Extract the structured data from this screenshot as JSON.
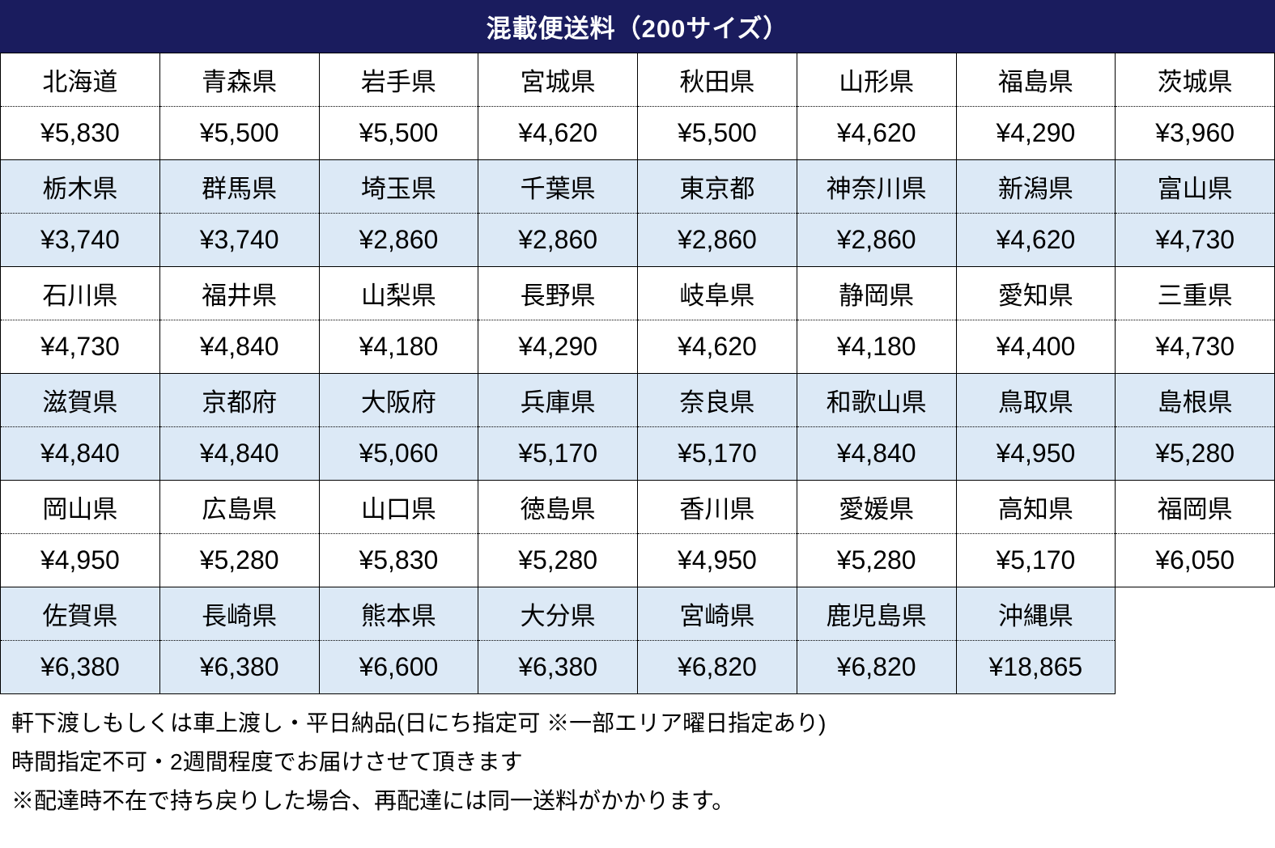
{
  "title": "混載便送料（200サイズ）",
  "colors": {
    "header_bg": "#1a1c5e",
    "header_text": "#ffffff",
    "shaded_row_bg": "#dce9f6",
    "plain_row_bg": "#ffffff",
    "border": "#000000",
    "text": "#000000"
  },
  "table": {
    "columns": 8,
    "groups": [
      {
        "shaded": false,
        "names": [
          "北海道",
          "青森県",
          "岩手県",
          "宮城県",
          "秋田県",
          "山形県",
          "福島県",
          "茨城県"
        ],
        "prices": [
          "¥5,830",
          "¥5,500",
          "¥5,500",
          "¥4,620",
          "¥5,500",
          "¥4,620",
          "¥4,290",
          "¥3,960"
        ]
      },
      {
        "shaded": true,
        "names": [
          "栃木県",
          "群馬県",
          "埼玉県",
          "千葉県",
          "東京都",
          "神奈川県",
          "新潟県",
          "富山県"
        ],
        "prices": [
          "¥3,740",
          "¥3,740",
          "¥2,860",
          "¥2,860",
          "¥2,860",
          "¥2,860",
          "¥4,620",
          "¥4,730"
        ]
      },
      {
        "shaded": false,
        "names": [
          "石川県",
          "福井県",
          "山梨県",
          "長野県",
          "岐阜県",
          "静岡県",
          "愛知県",
          "三重県"
        ],
        "prices": [
          "¥4,730",
          "¥4,840",
          "¥4,180",
          "¥4,290",
          "¥4,620",
          "¥4,180",
          "¥4,400",
          "¥4,730"
        ]
      },
      {
        "shaded": true,
        "names": [
          "滋賀県",
          "京都府",
          "大阪府",
          "兵庫県",
          "奈良県",
          "和歌山県",
          "鳥取県",
          "島根県"
        ],
        "prices": [
          "¥4,840",
          "¥4,840",
          "¥5,060",
          "¥5,170",
          "¥5,170",
          "¥4,840",
          "¥4,950",
          "¥5,280"
        ]
      },
      {
        "shaded": false,
        "names": [
          "岡山県",
          "広島県",
          "山口県",
          "徳島県",
          "香川県",
          "愛媛県",
          "高知県",
          "福岡県"
        ],
        "prices": [
          "¥4,950",
          "¥5,280",
          "¥5,830",
          "¥5,280",
          "¥4,950",
          "¥5,280",
          "¥5,170",
          "¥6,050"
        ]
      },
      {
        "shaded": true,
        "names": [
          "佐賀県",
          "長崎県",
          "熊本県",
          "大分県",
          "宮崎県",
          "鹿児島県",
          "沖縄県"
        ],
        "prices": [
          "¥6,380",
          "¥6,380",
          "¥6,600",
          "¥6,380",
          "¥6,820",
          "¥6,820",
          "¥18,865"
        ]
      }
    ]
  },
  "notes": [
    "軒下渡しもしくは車上渡し・平日納品(日にち指定可 ※一部エリア曜日指定あり)",
    "時間指定不可・2週間程度でお届けさせて頂きます",
    "※配達時不在で持ち戻りした場合、再配達には同一送料がかかります。"
  ]
}
